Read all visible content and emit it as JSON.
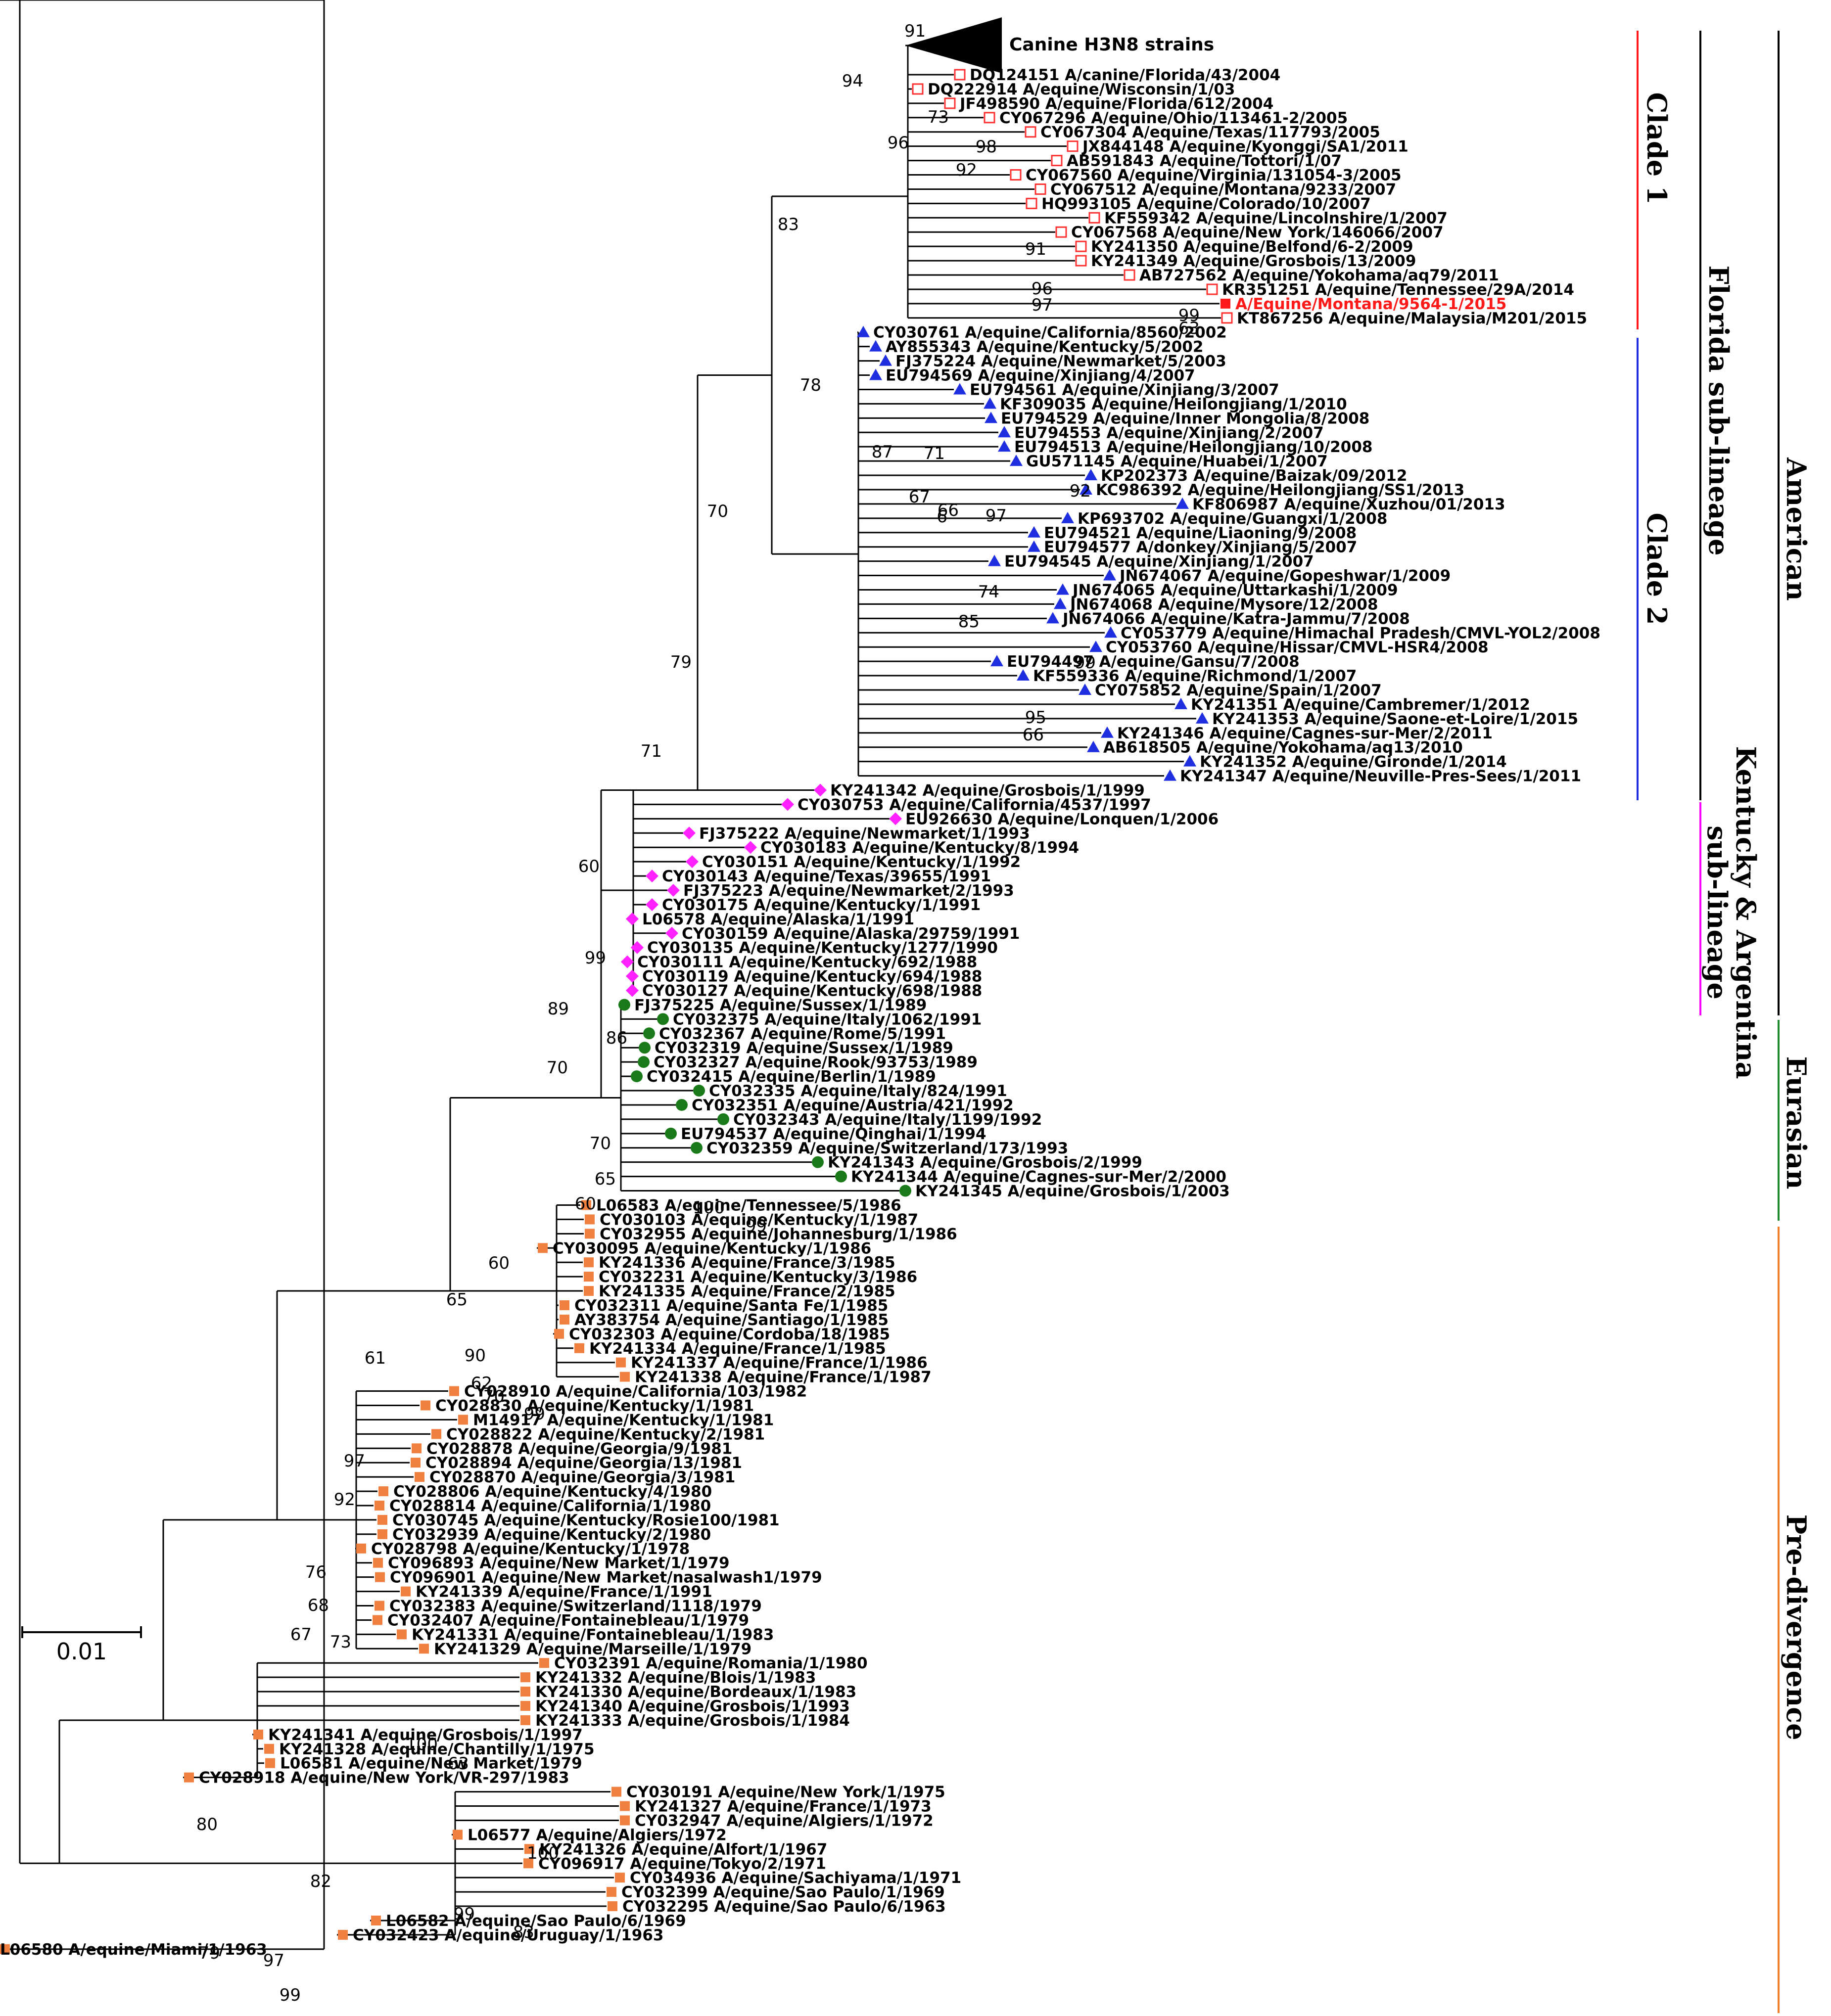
{
  "title": "Phylogenetic tree of equine influenza H3N8 HA sequences",
  "scale_bar": {
    "label": "0.01"
  },
  "collapsed_clade": {
    "label": "Canine H3N8 strains",
    "support": "91"
  },
  "colors": {
    "clade1": "#ff1a1a",
    "clade2": "#1f2fe0",
    "kentucky": "#ff00ff",
    "eurasian": "#1e8a2e",
    "predivergence": "#f08030",
    "diamond": "#ff22ff",
    "triangle": "#1f2fe0",
    "circle": "#1a7a1a",
    "square": "#f08040",
    "hollow": "#ff3030",
    "highlight": "#ff1a1a"
  },
  "bars": [
    {
      "name": "clade-1-bar",
      "label": "Clade 1",
      "color": "#ff1a1a"
    },
    {
      "name": "clade-2-bar",
      "label": "Clade 2",
      "color": "#1f2fe0"
    },
    {
      "name": "florida-bar",
      "label": "Florida sub-lineage",
      "color": "#000000"
    },
    {
      "name": "kentucky-bar",
      "label_line1": "Kentucky & Argentina",
      "label_line2": "sub-lineage",
      "color": "#ff00ff"
    },
    {
      "name": "american-bar",
      "label": "American",
      "color": "#000000"
    },
    {
      "name": "eurasian-bar",
      "label": "Eurasian",
      "color": "#1e8a2e"
    },
    {
      "name": "predivergence-bar",
      "label": "Pre-divergence",
      "color": "#f08030"
    }
  ],
  "tips": [
    {
      "acc": "DQ124151",
      "strain": "A/canine/Florida/43/2004",
      "marker": "hollow"
    },
    {
      "acc": "DQ222914",
      "strain": "A/equine/Wisconsin/1/03",
      "marker": "hollow"
    },
    {
      "acc": "JF498590",
      "strain": "A/equine/Florida/612/2004",
      "marker": "hollow"
    },
    {
      "acc": "CY067296",
      "strain": "A/equine/Ohio/113461-2/2005",
      "marker": "hollow"
    },
    {
      "acc": "CY067304",
      "strain": "A/equine/Texas/117793/2005",
      "marker": "hollow"
    },
    {
      "acc": "JX844148",
      "strain": "A/equine/Kyonggi/SA1/2011",
      "marker": "hollow"
    },
    {
      "acc": "AB591843",
      "strain": "A/equine/Tottori/1/07",
      "marker": "hollow"
    },
    {
      "acc": "CY067560",
      "strain": "A/equine/Virginia/131054-3/2005",
      "marker": "hollow"
    },
    {
      "acc": "CY067512",
      "strain": "A/equine/Montana/9233/2007",
      "marker": "hollow"
    },
    {
      "acc": "HQ993105",
      "strain": "A/equine/Colorado/10/2007",
      "marker": "hollow"
    },
    {
      "acc": "KF559342",
      "strain": "A/equine/Lincolnshire/1/2007",
      "marker": "hollow"
    },
    {
      "acc": "CY067568",
      "strain": "A/equine/New York/146066/2007",
      "marker": "hollow"
    },
    {
      "acc": "KY241350",
      "strain": "A/equine/Belfond/6-2/2009",
      "marker": "hollow"
    },
    {
      "acc": "KY241349",
      "strain": "A/equine/Grosbois/13/2009",
      "marker": "hollow"
    },
    {
      "acc": "AB727562",
      "strain": "A/equine/Yokohama/aq79/2011",
      "marker": "hollow"
    },
    {
      "acc": "KR351251",
      "strain": "A/equine/Tennessee/29A/2014",
      "marker": "hollow"
    },
    {
      "acc": "",
      "strain": "A/Equine/Montana/9564-1/2015",
      "marker": "highlight"
    },
    {
      "acc": "KT867256",
      "strain": "A/equine/Malaysia/M201/2015",
      "marker": "hollow"
    },
    {
      "acc": "CY030761",
      "strain": "A/equine/California/8560/2002",
      "marker": "triangle"
    },
    {
      "acc": "AY855343",
      "strain": "A/equine/Kentucky/5/2002",
      "marker": "triangle"
    },
    {
      "acc": "FJ375224",
      "strain": "A/equine/Newmarket/5/2003",
      "marker": "triangle"
    },
    {
      "acc": "EU794569",
      "strain": "A/equine/Xinjiang/4/2007",
      "marker": "triangle"
    },
    {
      "acc": "EU794561",
      "strain": "A/equine/Xinjiang/3/2007",
      "marker": "triangle"
    },
    {
      "acc": "KF309035",
      "strain": "A/equine/Heilongjiang/1/2010",
      "marker": "triangle"
    },
    {
      "acc": "EU794529",
      "strain": "A/equine/Inner Mongolia/8/2008",
      "marker": "triangle"
    },
    {
      "acc": "EU794553",
      "strain": "A/equine/Xinjiang/2/2007",
      "marker": "triangle"
    },
    {
      "acc": "EU794513",
      "strain": "A/equine/Heilongjiang/10/2008",
      "marker": "triangle"
    },
    {
      "acc": "GU571145",
      "strain": "A/equine/Huabei/1/2007",
      "marker": "triangle"
    },
    {
      "acc": "KP202373",
      "strain": "A/equine/Baizak/09/2012",
      "marker": "triangle"
    },
    {
      "acc": "KC986392",
      "strain": "A/equine/Heilongjiang/SS1/2013",
      "marker": "triangle"
    },
    {
      "acc": "KF806987",
      "strain": "A/equine/Xuzhou/01/2013",
      "marker": "triangle"
    },
    {
      "acc": "KP693702",
      "strain": "A/equine/Guangxi/1/2008",
      "marker": "triangle"
    },
    {
      "acc": "EU794521",
      "strain": "A/equine/Liaoning/9/2008",
      "marker": "triangle"
    },
    {
      "acc": "EU794577",
      "strain": "A/donkey/Xinjiang/5/2007",
      "marker": "triangle"
    },
    {
      "acc": "EU794545",
      "strain": "A/equine/Xinjiang/1/2007",
      "marker": "triangle"
    },
    {
      "acc": "JN674067",
      "strain": "A/equine/Gopeshwar/1/2009",
      "marker": "triangle"
    },
    {
      "acc": "JN674065",
      "strain": "A/equine/Uttarkashi/1/2009",
      "marker": "triangle"
    },
    {
      "acc": "JN674068",
      "strain": "A/equine/Mysore/12/2008",
      "marker": "triangle"
    },
    {
      "acc": "JN674066",
      "strain": "A/equine/Katra-Jammu/7/2008",
      "marker": "triangle"
    },
    {
      "acc": "CY053779",
      "strain": "A/equine/Himachal Pradesh/CMVL-YOL2/2008",
      "marker": "triangle"
    },
    {
      "acc": "CY053760",
      "strain": "A/equine/Hissar/CMVL-HSR4/2008",
      "marker": "triangle"
    },
    {
      "acc": "EU794497",
      "strain": "A/equine/Gansu/7/2008",
      "marker": "triangle"
    },
    {
      "acc": "KF559336",
      "strain": "A/equine/Richmond/1/2007",
      "marker": "triangle"
    },
    {
      "acc": "CY075852",
      "strain": "A/equine/Spain/1/2007",
      "marker": "triangle"
    },
    {
      "acc": "KY241351",
      "strain": "A/equine/Cambremer/1/2012",
      "marker": "triangle"
    },
    {
      "acc": "KY241353",
      "strain": "A/equine/Saone-et-Loire/1/2015",
      "marker": "triangle"
    },
    {
      "acc": "KY241346",
      "strain": "A/equine/Cagnes-sur-Mer/2/2011",
      "marker": "triangle"
    },
    {
      "acc": "AB618505",
      "strain": "A/equine/Yokohama/aq13/2010",
      "marker": "triangle"
    },
    {
      "acc": "KY241352",
      "strain": "A/equine/Gironde/1/2014",
      "marker": "triangle"
    },
    {
      "acc": "KY241347",
      "strain": "A/equine/Neuville-Pres-Sees/1/2011",
      "marker": "triangle"
    },
    {
      "acc": "KY241342",
      "strain": "A/equine/Grosbois/1/1999",
      "marker": "diamond"
    },
    {
      "acc": "CY030753",
      "strain": "A/equine/California/4537/1997",
      "marker": "diamond"
    },
    {
      "acc": "EU926630",
      "strain": "A/equine/Lonquen/1/2006",
      "marker": "diamond"
    },
    {
      "acc": "FJ375222",
      "strain": "A/equine/Newmarket/1/1993",
      "marker": "diamond"
    },
    {
      "acc": "CY030183",
      "strain": "A/equine/Kentucky/8/1994",
      "marker": "diamond"
    },
    {
      "acc": "CY030151",
      "strain": "A/equine/Kentucky/1/1992",
      "marker": "diamond"
    },
    {
      "acc": "CY030143",
      "strain": "A/equine/Texas/39655/1991",
      "marker": "diamond"
    },
    {
      "acc": "FJ375223",
      "strain": "A/equine/Newmarket/2/1993",
      "marker": "diamond"
    },
    {
      "acc": "CY030175",
      "strain": "A/equine/Kentucky/1/1991",
      "marker": "diamond"
    },
    {
      "acc": "L06578",
      "strain": "A/equine/Alaska/1/1991",
      "marker": "diamond"
    },
    {
      "acc": "CY030159",
      "strain": "A/equine/Alaska/29759/1991",
      "marker": "diamond"
    },
    {
      "acc": "CY030135",
      "strain": "A/equine/Kentucky/1277/1990",
      "marker": "diamond"
    },
    {
      "acc": "CY030111",
      "strain": "A/equine/Kentucky/692/1988",
      "marker": "diamond"
    },
    {
      "acc": "CY030119",
      "strain": "A/equine/Kentucky/694/1988",
      "marker": "diamond"
    },
    {
      "acc": "CY030127",
      "strain": "A/equine/Kentucky/698/1988",
      "marker": "diamond"
    },
    {
      "acc": "FJ375225",
      "strain": "A/equine/Sussex/1/1989",
      "marker": "circle"
    },
    {
      "acc": "CY032375",
      "strain": "A/equine/Italy/1062/1991",
      "marker": "circle"
    },
    {
      "acc": "CY032367",
      "strain": "A/equine/Rome/5/1991",
      "marker": "circle"
    },
    {
      "acc": "CY032319",
      "strain": "A/equine/Sussex/1/1989",
      "marker": "circle"
    },
    {
      "acc": "CY032327",
      "strain": "A/equine/Rook/93753/1989",
      "marker": "circle"
    },
    {
      "acc": "CY032415",
      "strain": "A/equine/Berlin/1/1989",
      "marker": "circle"
    },
    {
      "acc": "CY032335",
      "strain": "A/equine/Italy/824/1991",
      "marker": "circle"
    },
    {
      "acc": "CY032351",
      "strain": "A/equine/Austria/421/1992",
      "marker": "circle"
    },
    {
      "acc": "CY032343",
      "strain": "A/equine/Italy/1199/1992",
      "marker": "circle"
    },
    {
      "acc": "EU794537",
      "strain": "A/equine/Qinghai/1/1994",
      "marker": "circle"
    },
    {
      "acc": "CY032359",
      "strain": "A/equine/Switzerland/173/1993",
      "marker": "circle"
    },
    {
      "acc": "KY241343",
      "strain": "A/equine/Grosbois/2/1999",
      "marker": "circle"
    },
    {
      "acc": "KY241344",
      "strain": "A/equine/Cagnes-sur-Mer/2/2000",
      "marker": "circle"
    },
    {
      "acc": "KY241345",
      "strain": "A/equine/Grosbois/1/2003",
      "marker": "circle"
    },
    {
      "acc": "L06583",
      "strain": "A/equine/Tennessee/5/1986",
      "marker": "square"
    },
    {
      "acc": "CY030103",
      "strain": "A/equine/Kentucky/1/1987",
      "marker": "square"
    },
    {
      "acc": "CY032955",
      "strain": "A/equine/Johannesburg/1/1986",
      "marker": "square"
    },
    {
      "acc": "CY030095",
      "strain": "A/equine/Kentucky/1/1986",
      "marker": "square"
    },
    {
      "acc": "KY241336",
      "strain": "A/equine/France/3/1985",
      "marker": "square"
    },
    {
      "acc": "CY032231",
      "strain": "A/equine/Kentucky/3/1986",
      "marker": "square"
    },
    {
      "acc": "KY241335",
      "strain": "A/equine/France/2/1985",
      "marker": "square"
    },
    {
      "acc": "CY032311",
      "strain": "A/equine/Santa Fe/1/1985",
      "marker": "square"
    },
    {
      "acc": "AY383754",
      "strain": "A/equine/Santiago/1/1985",
      "marker": "square"
    },
    {
      "acc": "CY032303",
      "strain": "A/equine/Cordoba/18/1985",
      "marker": "square"
    },
    {
      "acc": "KY241334",
      "strain": "A/equine/France/1/1985",
      "marker": "square"
    },
    {
      "acc": "KY241337",
      "strain": "A/equine/France/1/1986",
      "marker": "square"
    },
    {
      "acc": "KY241338",
      "strain": "A/equine/France/1/1987",
      "marker": "square"
    },
    {
      "acc": "CY028910",
      "strain": "A/equine/California/103/1982",
      "marker": "square"
    },
    {
      "acc": "CY028830",
      "strain": "A/equine/Kentucky/1/1981",
      "marker": "square"
    },
    {
      "acc": "M14917",
      "strain": "A/equine/Kentucky/1/1981",
      "marker": "square"
    },
    {
      "acc": "CY028822",
      "strain": "A/equine/Kentucky/2/1981",
      "marker": "square"
    },
    {
      "acc": "CY028878",
      "strain": "A/equine/Georgia/9/1981",
      "marker": "square"
    },
    {
      "acc": "CY028894",
      "strain": "A/equine/Georgia/13/1981",
      "marker": "square"
    },
    {
      "acc": "CY028870",
      "strain": "A/equine/Georgia/3/1981",
      "marker": "square"
    },
    {
      "acc": "CY028806",
      "strain": "A/equine/Kentucky/4/1980",
      "marker": "square"
    },
    {
      "acc": "CY028814",
      "strain": "A/equine/California/1/1980",
      "marker": "square"
    },
    {
      "acc": "CY030745",
      "strain": "A/equine/Kentucky/Rosie100/1981",
      "marker": "square"
    },
    {
      "acc": "CY032939",
      "strain": "A/equine/Kentucky/2/1980",
      "marker": "square"
    },
    {
      "acc": "CY028798",
      "strain": "A/equine/Kentucky/1/1978",
      "marker": "square"
    },
    {
      "acc": "CY096893",
      "strain": "A/equine/New Market/1/1979",
      "marker": "square"
    },
    {
      "acc": "CY096901",
      "strain": "A/equine/New Market/nasalwash1/1979",
      "marker": "square"
    },
    {
      "acc": "KY241339",
      "strain": "A/equine/France/1/1991",
      "marker": "square"
    },
    {
      "acc": "CY032383",
      "strain": "A/equine/Switzerland/1118/1979",
      "marker": "square"
    },
    {
      "acc": "CY032407",
      "strain": "A/equine/Fontainebleau/1/1979",
      "marker": "square"
    },
    {
      "acc": "KY241331",
      "strain": "A/equine/Fontainebleau/1/1983",
      "marker": "square"
    },
    {
      "acc": "KY241329",
      "strain": "A/equine/Marseille/1/1979",
      "marker": "square"
    },
    {
      "acc": "CY032391",
      "strain": "A/equine/Romania/1/1980",
      "marker": "square"
    },
    {
      "acc": "KY241332",
      "strain": "A/equine/Blois/1/1983",
      "marker": "square"
    },
    {
      "acc": "KY241330",
      "strain": "A/equine/Bordeaux/1/1983",
      "marker": "square"
    },
    {
      "acc": "KY241340",
      "strain": "A/equine/Grosbois/1/1993",
      "marker": "square"
    },
    {
      "acc": "KY241333",
      "strain": "A/equine/Grosbois/1/1984",
      "marker": "square"
    },
    {
      "acc": "KY241341",
      "strain": "A/equine/Grosbois/1/1997",
      "marker": "square"
    },
    {
      "acc": "KY241328",
      "strain": "A/equine/Chantilly/1/1975",
      "marker": "square"
    },
    {
      "acc": "L06581",
      "strain": "A/equine/New Market/1979",
      "marker": "square"
    },
    {
      "acc": "CY028918",
      "strain": "A/equine/New York/VR-297/1983",
      "marker": "square"
    },
    {
      "acc": "CY030191",
      "strain": "A/equine/New York/1/1975",
      "marker": "square"
    },
    {
      "acc": "KY241327",
      "strain": "A/equine/France/1/1973",
      "marker": "square"
    },
    {
      "acc": "CY032947",
      "strain": "A/equine/Algiers/1/1972",
      "marker": "square"
    },
    {
      "acc": "L06577",
      "strain": "A/equine/Algiers/1972",
      "marker": "square"
    },
    {
      "acc": "KY241326",
      "strain": "A/equine/Alfort/1/1967",
      "marker": "square"
    },
    {
      "acc": "CY096917",
      "strain": "A/equine/Tokyo/2/1971",
      "marker": "square"
    },
    {
      "acc": "CY034936",
      "strain": "A/equine/Sachiyama/1/1971",
      "marker": "square"
    },
    {
      "acc": "CY032399",
      "strain": "A/equine/Sao Paulo/1/1969",
      "marker": "square"
    },
    {
      "acc": "CY032295",
      "strain": "A/equine/Sao Paulo/6/1963",
      "marker": "square"
    },
    {
      "acc": "L06582",
      "strain": "A/equine/Sao Paulo/6/1969",
      "marker": "square"
    },
    {
      "acc": "CY032423",
      "strain": "A/equine/Uruguay/1/1963",
      "marker": "square"
    },
    {
      "acc": "L06580",
      "strain": "A/equine/Miami/1/1963",
      "marker": "square"
    }
  ],
  "supports": [
    "94",
    "96",
    "73",
    "98",
    "92",
    "91",
    "96",
    "97",
    "99",
    "63",
    "83",
    "78",
    "87",
    "71",
    "92",
    "97",
    "67",
    "6",
    "66",
    "74",
    "85",
    "99",
    "95",
    "66",
    "70",
    "79",
    "71",
    "60",
    "99",
    "89",
    "86",
    "70",
    "70",
    "65",
    "60",
    "100",
    "99",
    "60",
    "65",
    "90",
    "62",
    "70",
    "99",
    "61",
    "97",
    "92",
    "76",
    "68",
    "67",
    "73",
    "100",
    "63",
    "80",
    "100",
    "82",
    "99",
    "83",
    "79",
    "97",
    "99"
  ]
}
